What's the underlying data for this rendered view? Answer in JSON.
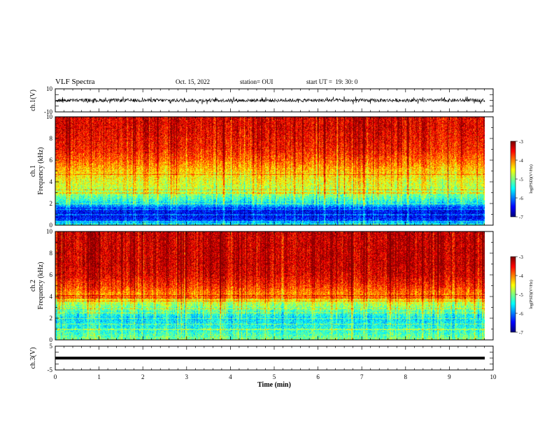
{
  "header": {
    "title": "VLF Spectra",
    "date": "Oct. 15, 2022",
    "station": "station= OUI",
    "start": "start UT =  19: 30: 0"
  },
  "chart_data": [
    {
      "type": "line",
      "panel": "ch1-waveform",
      "ylabel": "ch.1(V)",
      "ylim": [
        -10,
        10
      ],
      "yticks": [
        "10",
        "-10"
      ],
      "xlim": [
        0,
        10
      ],
      "description_values": {
        "baseline": 0,
        "typical_amplitude": 1.5,
        "spike_amplitude": 3.5
      },
      "color": "#000000"
    },
    {
      "type": "heatmap",
      "panel": "ch1-spectrogram",
      "ylabel": "ch.1 Frequency (kHz)",
      "ylim": [
        0,
        10
      ],
      "yticks": [
        "0",
        "2",
        "4",
        "6",
        "8",
        "10"
      ],
      "xlim": [
        0,
        9.8
      ],
      "colorbar": {
        "label": "log(PSD)(V²/Hz)",
        "range": [
          -7,
          -3
        ],
        "ticks": [
          "-3",
          "-4",
          "-5",
          "-6",
          "-7"
        ]
      },
      "profile_freq_khz": [
        0,
        0.5,
        1,
        1.5,
        2,
        2.5,
        3,
        3.5,
        4,
        5,
        6,
        7,
        8,
        9,
        10
      ],
      "profile_log_psd": [
        -5.2,
        -6.3,
        -6.6,
        -6.4,
        -5.6,
        -5.2,
        -4.9,
        -4.7,
        -4.6,
        -4.3,
        -3.9,
        -3.6,
        -3.5,
        -3.4,
        -3.4
      ],
      "lines_khz": [
        0.4,
        1.0,
        1.5,
        2.0,
        3.0,
        3.3,
        4.7
      ]
    },
    {
      "type": "heatmap",
      "panel": "ch2-spectrogram",
      "ylabel": "ch.2 Frequency (kHz)",
      "ylim": [
        0,
        10
      ],
      "yticks": [
        "0",
        "2",
        "4",
        "6",
        "8",
        "10"
      ],
      "xlim": [
        0,
        9.8
      ],
      "colorbar": {
        "label": "log(PSD)(V²/Hz)",
        "range": [
          -7,
          -3
        ],
        "ticks": [
          "-3",
          "-4",
          "-5",
          "-6",
          "-7"
        ]
      },
      "profile_freq_khz": [
        0,
        0.5,
        1,
        1.5,
        2,
        2.5,
        3,
        3.5,
        4,
        5,
        6,
        7,
        8,
        9,
        10
      ],
      "profile_log_psd": [
        -5.0,
        -5.2,
        -5.4,
        -5.5,
        -5.6,
        -5.3,
        -5.0,
        -4.7,
        -4.2,
        -3.7,
        -3.4,
        -3.3,
        -3.3,
        -3.3,
        -3.3
      ],
      "lines_khz": [
        1.0,
        1.5,
        2.0,
        2.5,
        2.9,
        3.6,
        3.9,
        4.1
      ]
    },
    {
      "type": "line",
      "panel": "ch3-waveform",
      "ylabel": "ch.3(V)",
      "ylim": [
        -5,
        5
      ],
      "yticks": [
        "5",
        "-5"
      ],
      "xlim": [
        0,
        10
      ],
      "constant_value": 0,
      "color": "#000000"
    }
  ],
  "xaxis": {
    "label": "Time (min)",
    "ticks": [
      "0",
      "1",
      "2",
      "3",
      "4",
      "5",
      "6",
      "7",
      "8",
      "9",
      "10"
    ]
  },
  "colors": {
    "jet": [
      "#000080",
      "#0000ff",
      "#00ffff",
      "#00ff00",
      "#ffff00",
      "#ff8000",
      "#ff0000",
      "#ffffff"
    ]
  }
}
